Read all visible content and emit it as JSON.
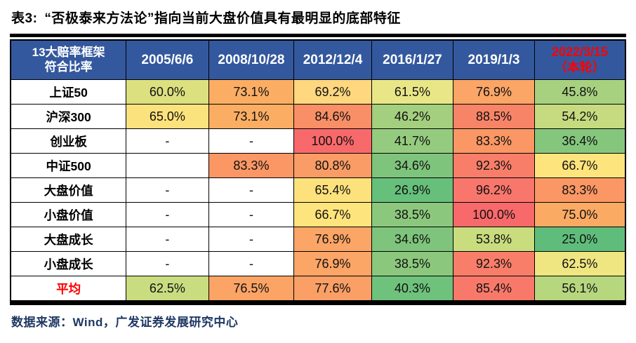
{
  "title": {
    "prefix": "表3:",
    "text": "“否极泰来方法论”指向当前大盘价值具有最明显的底部特征"
  },
  "colors": {
    "header_bg": "#33589E",
    "header_text": "#FFFFFF",
    "accent_red": "#FF0000",
    "source_text": "#1F3864",
    "border": "#000000",
    "scale_low_green": "#63BE7B",
    "scale_mid_yellow": "#FFEB84",
    "scale_high_red": "#F8696B"
  },
  "table": {
    "columns": [
      {
        "label": "13大赔率框架\n符合比率",
        "accent": false
      },
      {
        "label": "2005/6/6",
        "accent": false
      },
      {
        "label": "2008/10/28",
        "accent": false
      },
      {
        "label": "2012/12/4",
        "accent": false
      },
      {
        "label": "2016/1/27",
        "accent": false
      },
      {
        "label": "2019/1/3",
        "accent": false
      },
      {
        "label": "2022/3/15\n（本轮）",
        "accent": true
      }
    ],
    "rows": [
      {
        "label": "上证50",
        "accent": false,
        "cells": [
          {
            "v": "60.0%",
            "bg": "#DCE07F"
          },
          {
            "v": "73.1%",
            "bg": "#FBAE63"
          },
          {
            "v": "69.2%",
            "bg": "#FED77E"
          },
          {
            "v": "61.5%",
            "bg": "#E9E687"
          },
          {
            "v": "76.9%",
            "bg": "#FBA566"
          },
          {
            "v": "45.8%",
            "bg": "#A8D17F"
          }
        ]
      },
      {
        "label": "沪深300",
        "accent": false,
        "cells": [
          {
            "v": "65.0%",
            "bg": "#FCE27D"
          },
          {
            "v": "73.1%",
            "bg": "#FBAE63"
          },
          {
            "v": "84.6%",
            "bg": "#F98F66"
          },
          {
            "v": "46.2%",
            "bg": "#A3CF7E"
          },
          {
            "v": "88.5%",
            "bg": "#F88467"
          },
          {
            "v": "54.2%",
            "bg": "#C6DB80"
          }
        ]
      },
      {
        "label": "创业板",
        "accent": false,
        "cells": [
          {
            "v": "-",
            "bg": null
          },
          {
            "v": "-",
            "bg": null
          },
          {
            "v": "100.0%",
            "bg": "#F8696B"
          },
          {
            "v": "41.7%",
            "bg": "#95CB7E"
          },
          {
            "v": "83.3%",
            "bg": "#FA9764"
          },
          {
            "v": "36.4%",
            "bg": "#85C67D"
          }
        ]
      },
      {
        "label": "中证500",
        "accent": false,
        "cells": [
          {
            "v": "",
            "bg": null
          },
          {
            "v": "83.3%",
            "bg": "#FA9764"
          },
          {
            "v": "80.8%",
            "bg": "#FA9C65"
          },
          {
            "v": "34.6%",
            "bg": "#7EC47C"
          },
          {
            "v": "92.3%",
            "bg": "#F87E69"
          },
          {
            "v": "66.7%",
            "bg": "#FEE47C"
          }
        ]
      },
      {
        "label": "大盘价值",
        "accent": false,
        "cells": [
          {
            "v": "-",
            "bg": null
          },
          {
            "v": "-",
            "bg": null
          },
          {
            "v": "65.4%",
            "bg": "#FDE17C"
          },
          {
            "v": "26.9%",
            "bg": "#66BF7B"
          },
          {
            "v": "96.2%",
            "bg": "#F8766C"
          },
          {
            "v": "83.3%",
            "bg": "#FA9764"
          }
        ]
      },
      {
        "label": "小盘价值",
        "accent": false,
        "cells": [
          {
            "v": "-",
            "bg": null
          },
          {
            "v": "-",
            "bg": null
          },
          {
            "v": "66.7%",
            "bg": "#FEE47C"
          },
          {
            "v": "38.5%",
            "bg": "#8BC87D"
          },
          {
            "v": "100.0%",
            "bg": "#F8696B"
          },
          {
            "v": "75.0%",
            "bg": "#FBAA64"
          }
        ]
      },
      {
        "label": "大盘成长",
        "accent": false,
        "cells": [
          {
            "v": "-",
            "bg": null
          },
          {
            "v": "-",
            "bg": null
          },
          {
            "v": "76.9%",
            "bg": "#FBA566"
          },
          {
            "v": "34.6%",
            "bg": "#7EC47C"
          },
          {
            "v": "53.8%",
            "bg": "#C9DC7E"
          },
          {
            "v": "25.0%",
            "bg": "#5FBD7B"
          }
        ]
      },
      {
        "label": "小盘成长",
        "accent": false,
        "cells": [
          {
            "v": "-",
            "bg": null
          },
          {
            "v": "-",
            "bg": null
          },
          {
            "v": "76.9%",
            "bg": "#FBA566"
          },
          {
            "v": "38.5%",
            "bg": "#8BC87D"
          },
          {
            "v": "92.3%",
            "bg": "#F87E69"
          },
          {
            "v": "62.5%",
            "bg": "#EFE682"
          }
        ]
      },
      {
        "label": "平均",
        "accent": true,
        "cells": [
          {
            "v": "62.5%",
            "bg": "#C9DC80"
          },
          {
            "v": "76.5%",
            "bg": "#FBA465"
          },
          {
            "v": "77.6%",
            "bg": "#FA9F65"
          },
          {
            "v": "40.3%",
            "bg": "#6FC27C"
          },
          {
            "v": "85.4%",
            "bg": "#F8796A"
          },
          {
            "v": "56.1%",
            "bg": "#B7D77F"
          }
        ]
      }
    ]
  },
  "source": "数据来源：Wind，广发证券发展研究中心",
  "chart_data": {
    "type": "heatmap",
    "title": "表3: “否极泰来方法论”指向当前大盘价值具有最明显的底部特征",
    "row_header": "13大赔率框架符合比率",
    "columns": [
      "2005/6/6",
      "2008/10/28",
      "2012/12/4",
      "2016/1/27",
      "2019/1/3",
      "2022/3/15（本轮）"
    ],
    "rows": [
      "上证50",
      "沪深300",
      "创业板",
      "中证500",
      "大盘价值",
      "小盘价值",
      "大盘成长",
      "小盘成长",
      "平均"
    ],
    "values": [
      [
        60.0,
        73.1,
        69.2,
        61.5,
        76.9,
        45.8
      ],
      [
        65.0,
        73.1,
        84.6,
        46.2,
        88.5,
        54.2
      ],
      [
        null,
        null,
        100.0,
        41.7,
        83.3,
        36.4
      ],
      [
        null,
        83.3,
        80.8,
        34.6,
        92.3,
        66.7
      ],
      [
        null,
        null,
        65.4,
        26.9,
        96.2,
        83.3
      ],
      [
        null,
        null,
        66.7,
        38.5,
        100.0,
        75.0
      ],
      [
        null,
        null,
        76.9,
        34.6,
        53.8,
        25.0
      ],
      [
        null,
        null,
        76.9,
        38.5,
        92.3,
        62.5
      ],
      [
        62.5,
        76.5,
        77.6,
        40.3,
        85.4,
        56.1
      ]
    ],
    "unit": "%",
    "color_scale": {
      "low": "#63BE7B",
      "mid": "#FFEB84",
      "high": "#F8696B",
      "note": "green=low ratio, yellow=mid, red=high ratio"
    },
    "legend_position": "none",
    "source": "数据来源：Wind，广发证券发展研究中心"
  }
}
